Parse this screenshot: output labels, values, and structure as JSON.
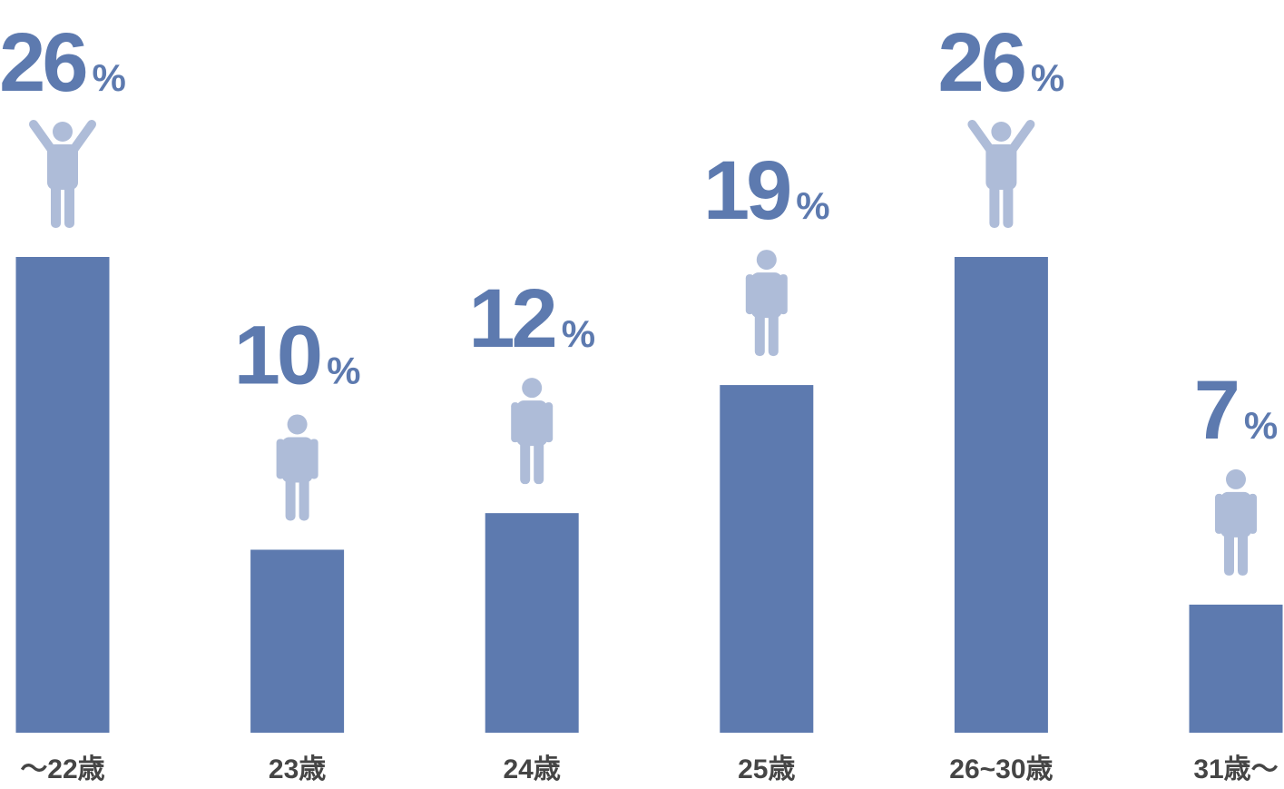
{
  "chart_data": {
    "type": "bar",
    "categories": [
      "～22歳",
      "23歳",
      "24歳",
      "25歳",
      "26~30歳",
      "31歳～"
    ],
    "values": [
      26,
      10,
      12,
      19,
      26,
      7
    ],
    "value_labels": [
      "26%",
      "10%",
      "12%",
      "19%",
      "26%",
      "7%"
    ],
    "color": "#5d7aaf"
  }
}
